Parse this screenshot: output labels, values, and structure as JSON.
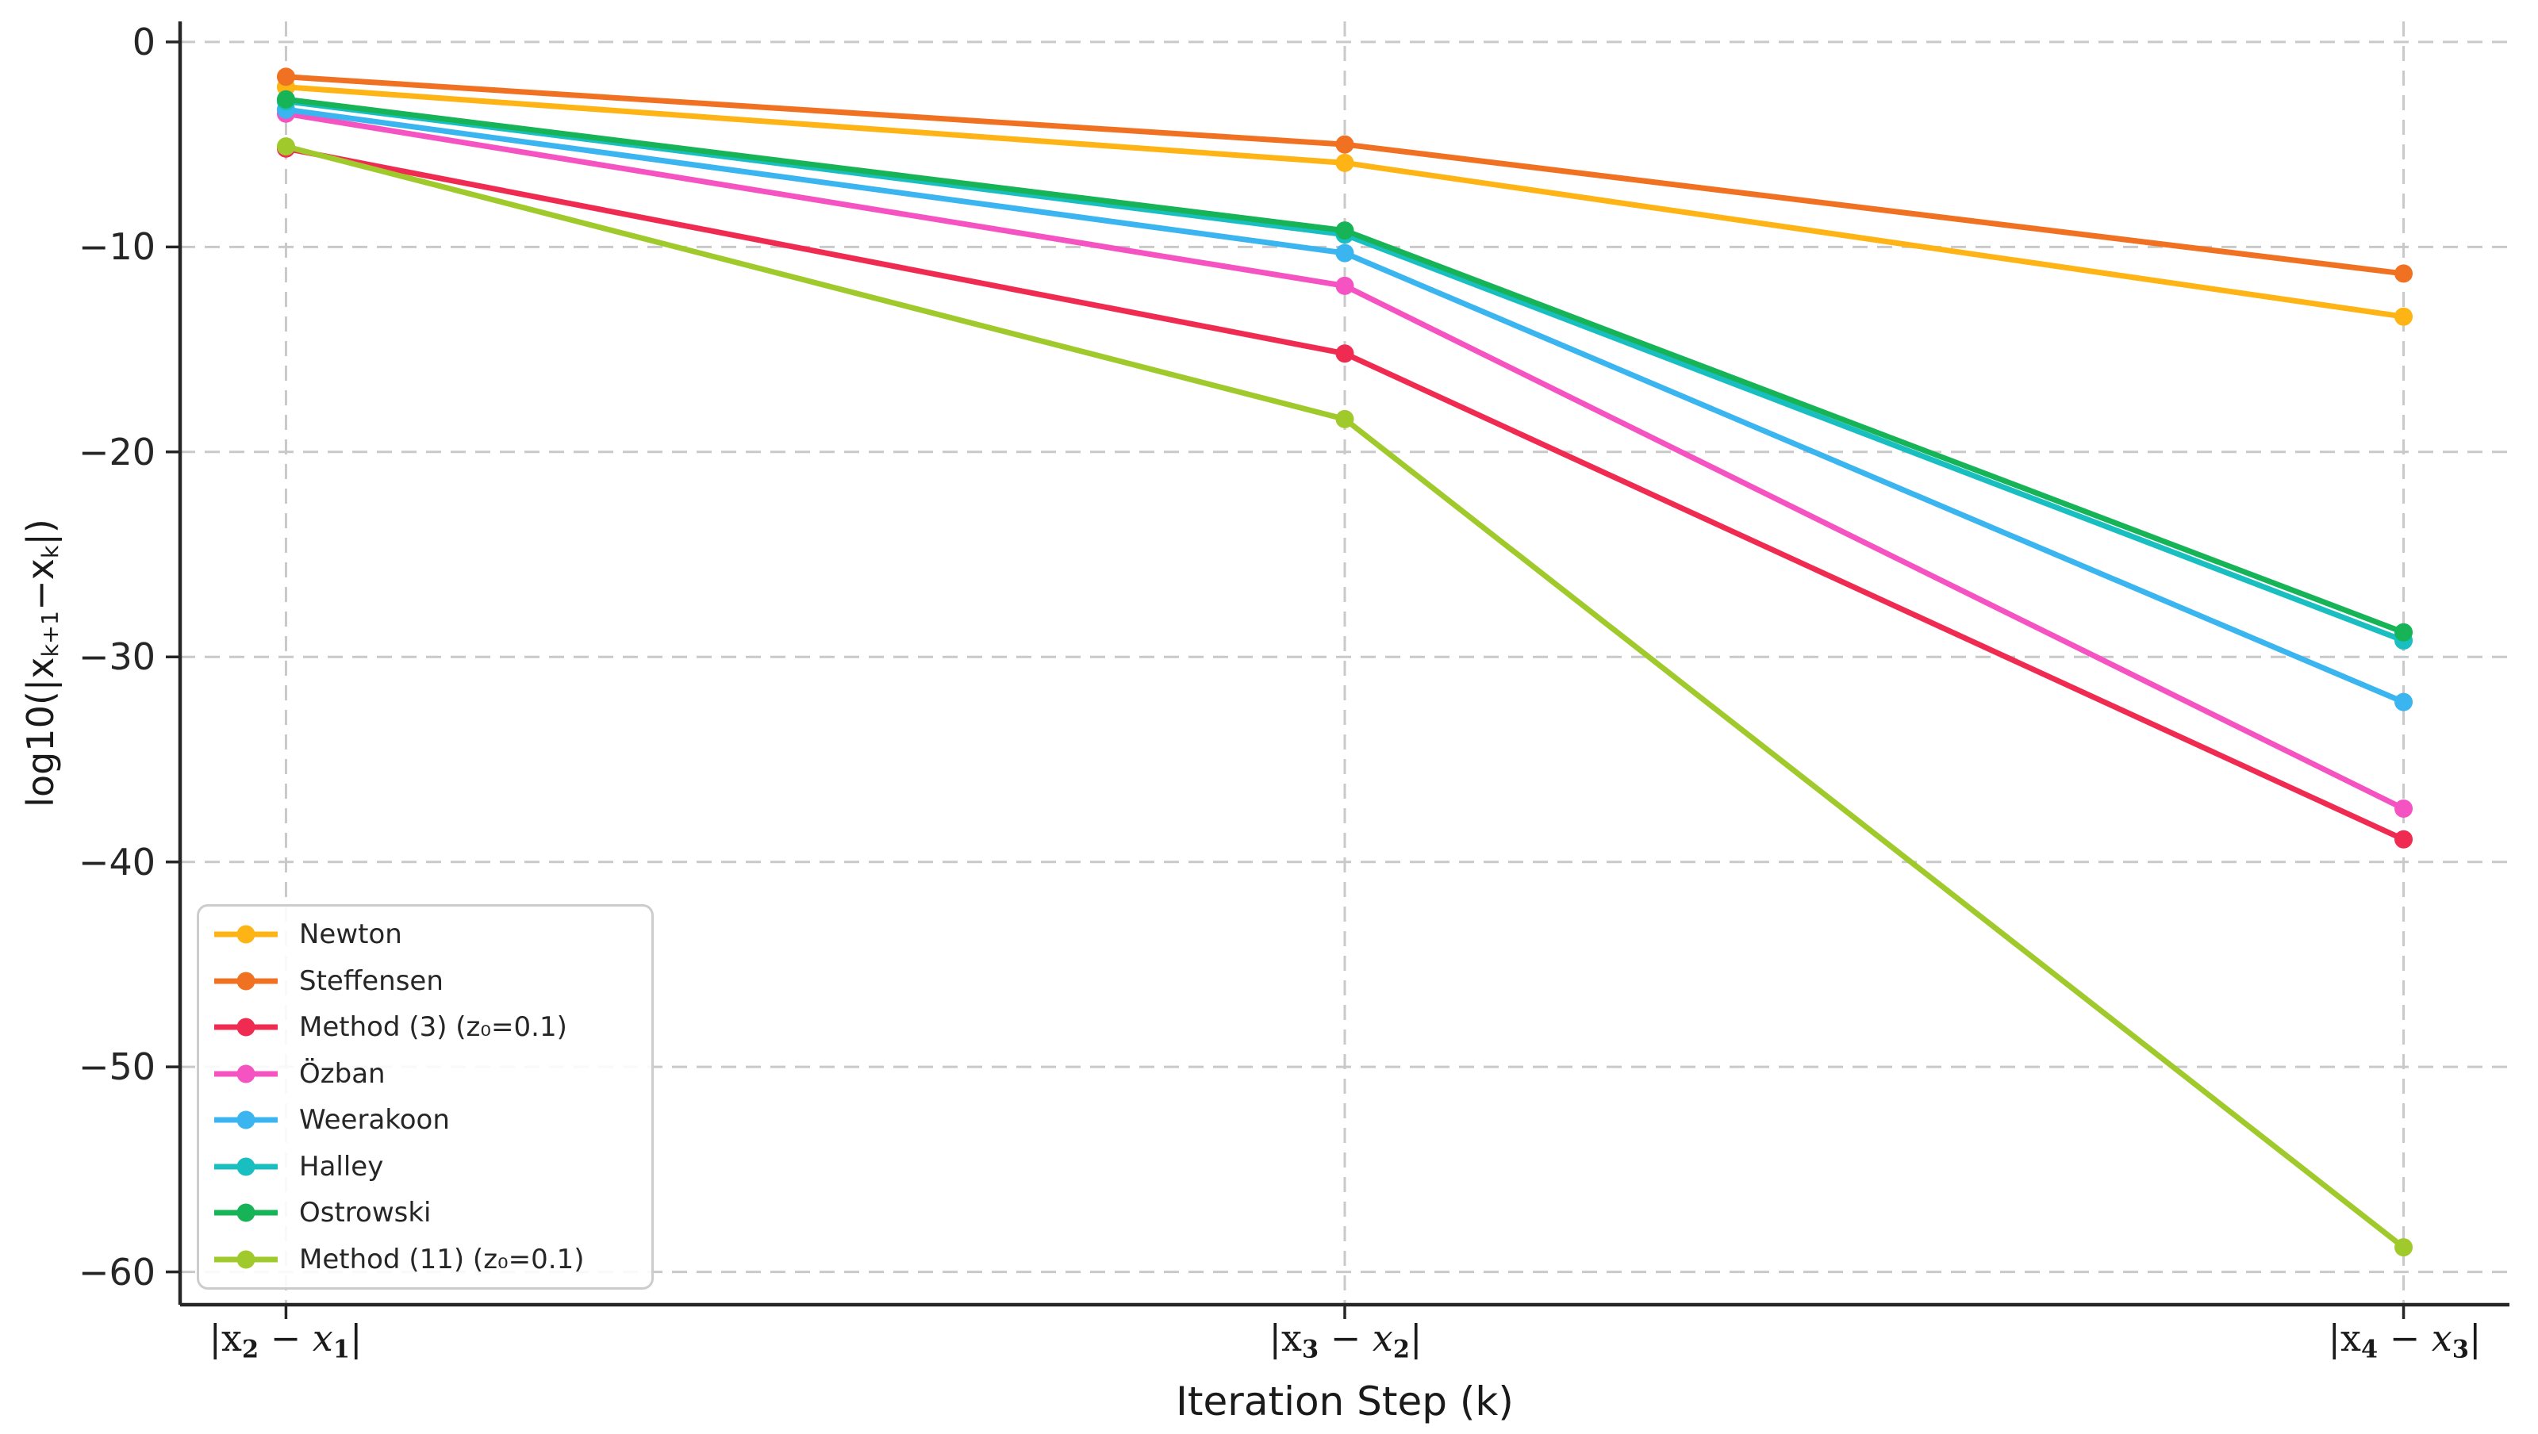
{
  "figure": {
    "background": "#ffffff"
  },
  "chart_data": {
    "type": "line",
    "title": "",
    "xlabel": "Iteration Step (k)",
    "ylabel": "log10(|x_k+1 − x_k|)",
    "ylabel_parts": {
      "pre": "log10(|x",
      "sub1": "k+1",
      "mid": "−x",
      "sub2": "k",
      "post": "|)"
    },
    "x": [
      0,
      1,
      2
    ],
    "xlim": [
      -0.1,
      2.1
    ],
    "ylim": [
      -61.6,
      1.0
    ],
    "grid": "dashed",
    "grid_color": "#c9c9c9",
    "spine_color": "#262626",
    "legend_position": "lower left",
    "yticks": [
      0,
      -10,
      -20,
      -30,
      -40,
      -50,
      -60
    ],
    "ytick_labels": [
      "0",
      "−10",
      "−20",
      "−30",
      "−40",
      "−50",
      "−60"
    ],
    "xtick_parts": [
      {
        "open": "|x",
        "sub_a": "2",
        "minus": " − x",
        "sub_b": "1",
        "close": "|"
      },
      {
        "open": "|x",
        "sub_a": "3",
        "minus": " − x",
        "sub_b": "2",
        "close": "|"
      },
      {
        "open": "|x",
        "sub_a": "4",
        "minus": " − x",
        "sub_b": "3",
        "close": "|"
      }
    ],
    "series": [
      {
        "name": "Newton",
        "color": "#FDB414",
        "values": [
          -2.2,
          -5.9,
          -13.4
        ]
      },
      {
        "name": "Steffensen",
        "color": "#F07121",
        "values": [
          -1.7,
          -5.0,
          -11.3
        ]
      },
      {
        "name": "Method (3) (z₀=0.1)",
        "color": "#EF2B51",
        "values": [
          -5.2,
          -15.2,
          -38.9
        ]
      },
      {
        "name": "Özban",
        "color": "#F553C1",
        "values": [
          -3.5,
          -11.9,
          -37.4
        ]
      },
      {
        "name": "Weerakoon",
        "color": "#3AB5EF",
        "values": [
          -3.3,
          -10.3,
          -32.2
        ]
      },
      {
        "name": "Halley",
        "color": "#19BFC0",
        "values": [
          -2.9,
          -9.4,
          -29.2
        ]
      },
      {
        "name": "Ostrowski",
        "color": "#17B457",
        "values": [
          -2.8,
          -9.2,
          -28.8
        ]
      },
      {
        "name": "Method (11) (z₀=0.1)",
        "color": "#A0CA2C",
        "values": [
          -5.1,
          -18.4,
          -58.8
        ]
      }
    ]
  }
}
